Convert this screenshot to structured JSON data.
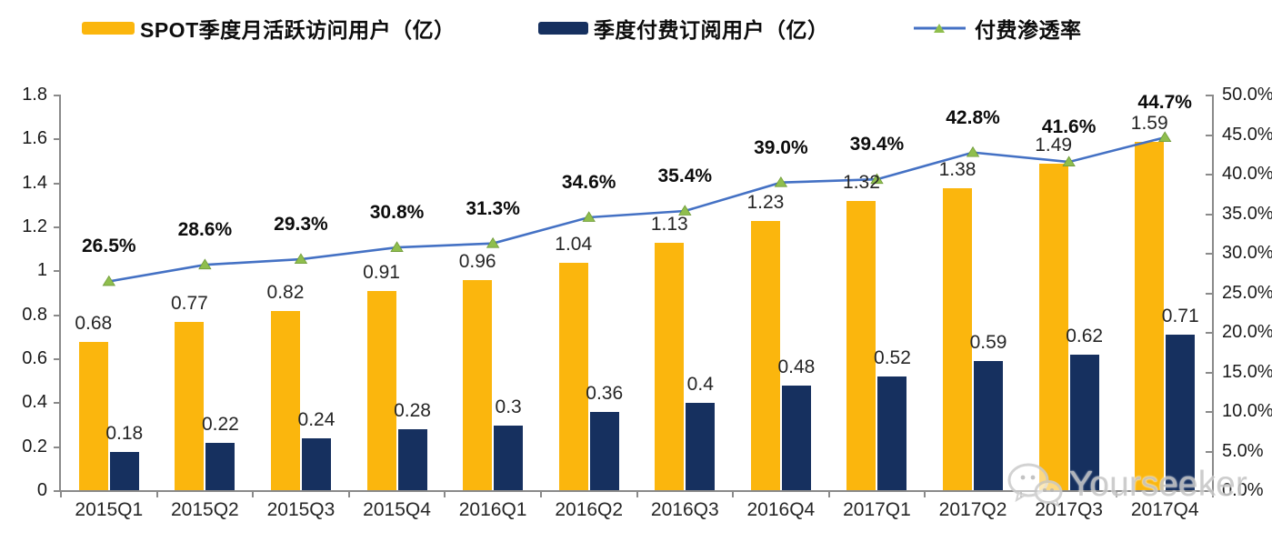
{
  "chart_data": {
    "type": "bar",
    "title": "",
    "legend_position": "top",
    "grid": false,
    "categories": [
      "2015Q1",
      "2015Q2",
      "2015Q3",
      "2015Q4",
      "2016Q1",
      "2016Q2",
      "2016Q3",
      "2016Q4",
      "2017Q1",
      "2017Q2",
      "2017Q3",
      "2017Q4"
    ],
    "series": [
      {
        "name": "SPOT季度月活跃访问用户（亿）",
        "type": "bar",
        "yaxis": "left",
        "color": "#FBB60D",
        "values": [
          0.68,
          0.77,
          0.82,
          0.91,
          0.96,
          1.04,
          1.13,
          1.23,
          1.32,
          1.38,
          1.49,
          1.59
        ],
        "labels": [
          "0.68",
          "0.77",
          "0.82",
          "0.91",
          "0.96",
          "1.04",
          "1.13",
          "1.23",
          "1.32",
          "1.38",
          "1.49",
          "1.59"
        ]
      },
      {
        "name": "季度付费订阅用户（亿）",
        "type": "bar",
        "yaxis": "left",
        "color": "#16305F",
        "values": [
          0.18,
          0.22,
          0.24,
          0.28,
          0.3,
          0.36,
          0.4,
          0.48,
          0.52,
          0.59,
          0.62,
          0.71
        ],
        "labels": [
          "0.18",
          "0.22",
          "0.24",
          "0.28",
          "0.3",
          "0.36",
          "0.4",
          "0.48",
          "0.52",
          "0.59",
          "0.62",
          "0.71"
        ]
      },
      {
        "name": "付费渗透率",
        "type": "line",
        "yaxis": "right",
        "color": "#4471C4",
        "marker": "triangle-up",
        "marker_color": "#8FBE4D",
        "values": [
          26.5,
          28.6,
          29.3,
          30.8,
          31.3,
          34.6,
          35.4,
          39.0,
          39.4,
          42.8,
          41.6,
          44.7
        ],
        "labels": [
          "26.5%",
          "28.6%",
          "29.3%",
          "30.8%",
          "31.3%",
          "34.6%",
          "35.4%",
          "39.0%",
          "39.4%",
          "42.8%",
          "41.6%",
          "44.7%"
        ]
      }
    ],
    "left_axis": {
      "min": 0,
      "max": 1.8,
      "tick_labels": [
        "1.8",
        "1.6",
        "1.4",
        "1.2",
        "1",
        "0.8",
        "0.6",
        "0.4",
        "0.2",
        "0"
      ]
    },
    "right_axis": {
      "min": 0,
      "max": 50.0,
      "tick_labels": [
        "50.0%",
        "45.0%",
        "40.0%",
        "35.0%",
        "30.0%",
        "25.0%",
        "20.0%",
        "15.0%",
        "10.0%",
        "5.0%",
        "0.0%"
      ]
    }
  },
  "watermark": {
    "text": "Yourseeker",
    "icon": "wechat-icon"
  }
}
